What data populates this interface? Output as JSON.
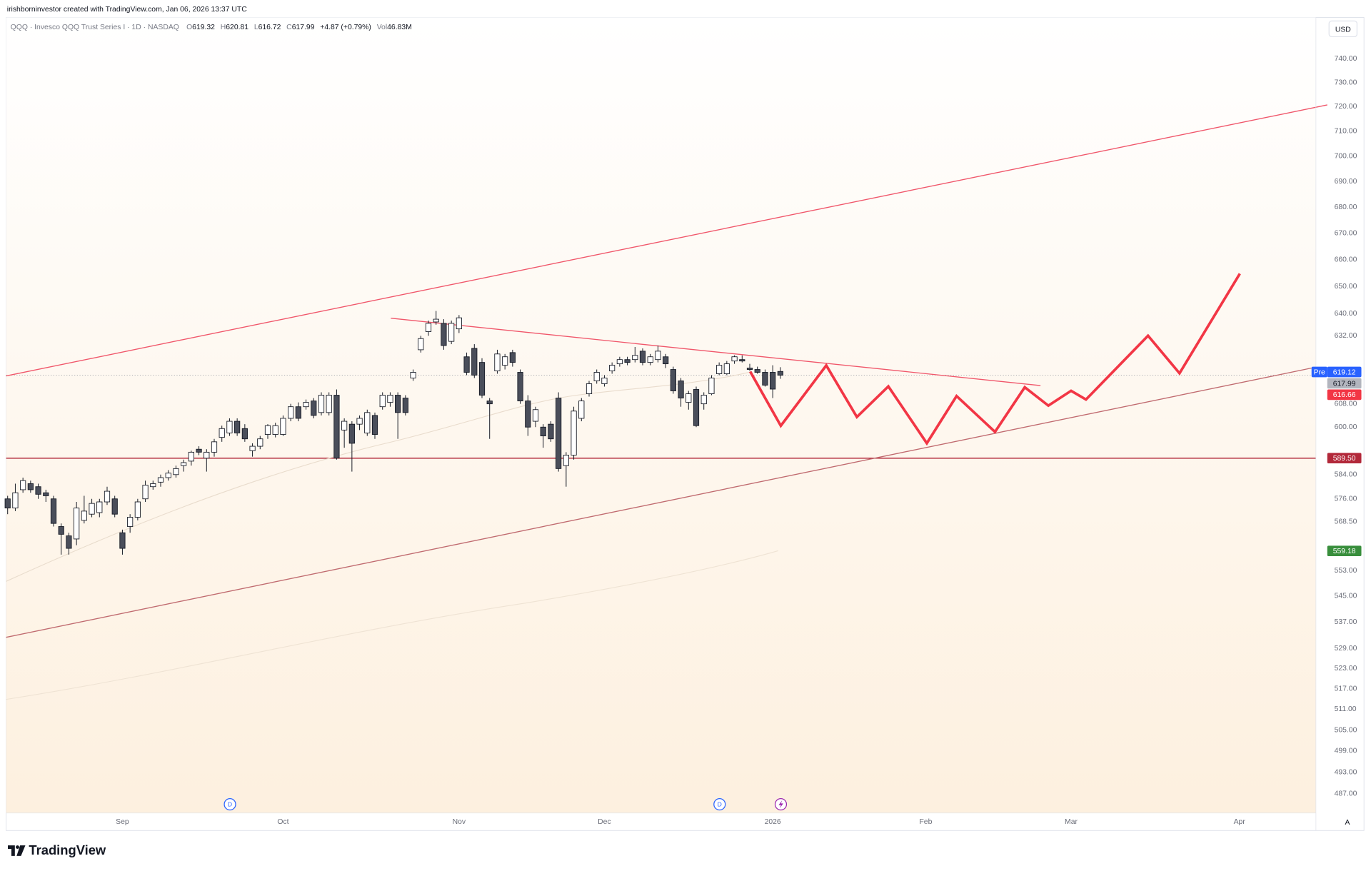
{
  "credit": "irishborninvestor created with TradingView.com, Jan 06, 2026 13:37 UTC",
  "header": {
    "symbol": "QQQ · Invesco QQQ Trust Series I · 1D · NASDAQ",
    "ohlc_labels": [
      "O",
      "H",
      "L",
      "C"
    ],
    "change": "+4.87 (+0.79%)",
    "vol_label": "Vol",
    "volume": "46.83M"
  },
  "currency": "USD",
  "auto_label": "A",
  "event_markers": [
    "D",
    "D"
  ],
  "brand": "TradingView",
  "chart_data": {
    "type": "candlestick",
    "log_scale": true,
    "grid": false,
    "up_color": "#ffffff",
    "down_color": "#4a4e5a",
    "wick_color": "#131722",
    "ylim": [
      481.7,
      757.5
    ],
    "yticks": [
      {
        "value": 740,
        "label": "740.00"
      },
      {
        "value": 730,
        "label": "730.00"
      },
      {
        "value": 720,
        "label": "720.00"
      },
      {
        "value": 710,
        "label": "710.00"
      },
      {
        "value": 700,
        "label": "700.00"
      },
      {
        "value": 690,
        "label": "690.00"
      },
      {
        "value": 680,
        "label": "680.00"
      },
      {
        "value": 670,
        "label": "670.00"
      },
      {
        "value": 660,
        "label": "660.00"
      },
      {
        "value": 650,
        "label": "650.00"
      },
      {
        "value": 640,
        "label": "640.00"
      },
      {
        "value": 632,
        "label": "632.00"
      },
      {
        "value": 608,
        "label": "608.00"
      },
      {
        "value": 600,
        "label": "600.00"
      },
      {
        "value": 584,
        "label": "584.00"
      },
      {
        "value": 576,
        "label": "576.00"
      },
      {
        "value": 568.5,
        "label": "568.50"
      },
      {
        "value": 553,
        "label": "553.00"
      },
      {
        "value": 545,
        "label": "545.00"
      },
      {
        "value": 537,
        "label": "537.00"
      },
      {
        "value": 529,
        "label": "529.00"
      },
      {
        "value": 523,
        "label": "523.00"
      },
      {
        "value": 517,
        "label": "517.00"
      },
      {
        "value": 511,
        "label": "511.00"
      },
      {
        "value": 505,
        "label": "505.00"
      },
      {
        "value": 499,
        "label": "499.00"
      },
      {
        "value": 493,
        "label": "493.00"
      },
      {
        "value": 487,
        "label": "487.00"
      }
    ],
    "price_tags": [
      {
        "name": "Pre",
        "value": 619.12,
        "color": "#2962ff"
      },
      {
        "value": 616.66,
        "color": "#f23645"
      },
      {
        "value": 589.5,
        "label": "589.50",
        "color": "#b2283a",
        "line": true
      },
      {
        "value": 559.18,
        "color": "#388e3c"
      }
    ],
    "last_color": "#b2b5be",
    "categories": [
      null,
      null,
      null,
      null,
      null,
      null,
      null,
      null,
      null,
      null,
      null,
      null,
      null,
      null,
      null,
      "Sep",
      null,
      null,
      null,
      null,
      null,
      null,
      null,
      null,
      null,
      null,
      null,
      null,
      null,
      null,
      null,
      null,
      null,
      null,
      null,
      null,
      "Oct",
      null,
      null,
      null,
      null,
      null,
      null,
      null,
      null,
      null,
      null,
      null,
      null,
      null,
      null,
      null,
      null,
      null,
      null,
      null,
      null,
      null,
      null,
      "Nov",
      null,
      null,
      null,
      null,
      null,
      null,
      null,
      null,
      null,
      null,
      null,
      null,
      null,
      null,
      null,
      null,
      null,
      null,
      "Dec",
      null,
      null,
      null,
      null,
      null,
      null,
      null,
      null,
      null,
      null,
      null,
      null,
      null,
      null,
      null,
      null,
      null,
      null,
      null,
      null,
      null,
      "2026",
      null,
      null,
      null,
      null,
      null,
      null,
      null,
      null,
      null,
      null,
      null,
      null,
      null,
      null,
      null,
      null,
      null,
      null,
      null,
      "Feb",
      null,
      null,
      null,
      null,
      null,
      null,
      null,
      null,
      null,
      null,
      null,
      null,
      null,
      null,
      null,
      null,
      null,
      null,
      "Mar",
      null,
      null,
      null,
      null,
      null,
      null,
      null,
      null,
      null,
      null,
      null,
      null,
      null,
      null,
      null,
      null,
      null,
      null,
      null,
      null,
      null,
      "Apr",
      null,
      null,
      null,
      null,
      null,
      null,
      null,
      null
    ],
    "open": [
      576,
      573,
      579,
      581,
      580,
      578,
      576,
      567,
      564,
      563,
      569,
      571,
      571.5,
      575,
      576,
      565,
      567,
      570,
      576,
      580,
      581.5,
      583,
      584,
      587,
      588.5,
      592.5,
      589.5,
      591.5,
      596.5,
      598,
      602,
      599.5,
      592,
      593.5,
      597.5,
      597.5,
      597.5,
      603,
      607,
      607,
      609,
      605,
      605,
      611,
      599,
      601,
      601,
      598,
      604,
      607,
      608.5,
      611,
      610,
      617,
      627,
      633.5,
      637,
      636.5,
      630,
      634.5,
      624.5,
      627.5,
      622.5,
      609,
      619.5,
      621.5,
      626,
      619,
      609,
      602,
      600,
      601,
      610,
      587,
      590.5,
      603,
      611.5,
      616,
      615,
      619.5,
      622,
      623.5,
      623.5,
      626.5,
      622.5,
      623.5,
      624.5,
      620,
      616,
      608.5,
      613,
      608,
      611.5,
      618.5,
      618.5,
      623,
      623.5,
      620.5,
      620,
      619,
      619,
      619.32,
      null,
      null,
      null,
      null,
      null,
      null,
      null,
      null,
      null,
      null,
      null,
      null,
      null,
      null,
      null,
      null,
      null,
      null,
      null,
      null,
      null,
      null,
      null,
      null,
      null,
      null,
      null,
      null,
      null,
      null,
      null,
      null,
      null,
      null,
      null,
      null,
      null,
      null,
      null,
      null,
      null,
      null,
      null,
      null,
      null,
      null,
      null,
      null,
      null,
      null,
      null,
      null,
      null,
      null,
      null,
      null,
      null,
      null,
      null,
      null,
      null,
      null,
      null,
      null,
      null,
      null,
      null,
      null
    ],
    "high": [
      577,
      581,
      583,
      582,
      581,
      579,
      577,
      568,
      565,
      575,
      577,
      576,
      576,
      580,
      577,
      566,
      571,
      576,
      582,
      582,
      584,
      585.5,
      587,
      589,
      592,
      593.5,
      592.5,
      596,
      600.5,
      603,
      603,
      601,
      594.5,
      597,
      601,
      601.5,
      604,
      608,
      608.5,
      609.5,
      610,
      612,
      612,
      613,
      603,
      602,
      604,
      606,
      605,
      612,
      612,
      612,
      611,
      620,
      632,
      637.5,
      641,
      638,
      637.5,
      639.5,
      626,
      629,
      624,
      610,
      627,
      625.5,
      627,
      620,
      611,
      607,
      601,
      602,
      612,
      591.5,
      607,
      610,
      616,
      620,
      618,
      622.5,
      624.5,
      624.5,
      628,
      627.5,
      625.5,
      628.5,
      625.5,
      621,
      617,
      612.5,
      614,
      612,
      618,
      622.5,
      623,
      625,
      625,
      622,
      621,
      620,
      621.5,
      620.81,
      null,
      null,
      null,
      null,
      null,
      null,
      null,
      null,
      null,
      null,
      null,
      null,
      null,
      null,
      null,
      null,
      null,
      null,
      null,
      null,
      null,
      null,
      null,
      null,
      null,
      null,
      null,
      null,
      null,
      null,
      null,
      null,
      null,
      null,
      null,
      null,
      null,
      null,
      null,
      null,
      null,
      null,
      null,
      null,
      null,
      null,
      null,
      null,
      null,
      null,
      null,
      null,
      null,
      null,
      null,
      null,
      null,
      null,
      null,
      null,
      null,
      null,
      null,
      null,
      null,
      null,
      null,
      null
    ],
    "low": [
      571,
      572,
      578,
      578,
      576,
      575,
      567,
      558,
      558,
      561,
      568,
      570,
      570,
      574,
      570,
      558,
      565,
      569,
      575,
      579,
      580,
      582,
      583,
      585,
      587,
      590.5,
      585,
      590,
      595,
      597,
      597,
      595,
      590,
      592.5,
      596,
      596.5,
      597,
      602,
      602,
      606,
      603,
      604,
      604,
      589,
      593,
      585,
      599,
      597,
      596,
      606,
      607,
      596,
      604,
      616,
      626,
      632,
      636,
      627,
      629,
      633,
      618,
      617,
      610,
      596,
      618.5,
      620,
      621,
      608,
      597,
      600,
      593,
      595,
      585,
      580,
      589,
      602,
      610.5,
      615,
      614,
      618.5,
      621,
      621.5,
      622.5,
      621.5,
      621.5,
      622.5,
      620.5,
      611.5,
      607,
      606,
      600,
      606,
      611,
      618,
      618,
      622,
      622.5,
      619.5,
      618.5,
      614,
      610,
      616.72,
      null,
      null,
      null,
      null,
      null,
      null,
      null,
      null,
      null,
      null,
      null,
      null,
      null,
      null,
      null,
      null,
      null,
      null,
      null,
      null,
      null,
      null,
      null,
      null,
      null,
      null,
      null,
      null,
      null,
      null,
      null,
      null,
      null,
      null,
      null,
      null,
      null,
      null,
      null,
      null,
      null,
      null,
      null,
      null,
      null,
      null,
      null,
      null,
      null,
      null,
      null,
      null,
      null,
      null,
      null,
      null,
      null,
      null,
      null,
      null,
      null,
      null,
      null,
      null,
      null,
      null,
      null,
      null
    ],
    "close": [
      573,
      578,
      582,
      579,
      577.5,
      577,
      568,
      564.5,
      560,
      573,
      572,
      574.5,
      575,
      578.5,
      571,
      560,
      570,
      575,
      580.5,
      581,
      583,
      584.5,
      586,
      588,
      591.5,
      591.5,
      591.5,
      595,
      599.5,
      602,
      598,
      596,
      593.5,
      596,
      600.5,
      600.5,
      603,
      607,
      603,
      608.5,
      604,
      611,
      611,
      589.5,
      602,
      594.5,
      603,
      605,
      597.5,
      611,
      611,
      605,
      605,
      619,
      631,
      636.5,
      638,
      628.5,
      636.5,
      638.5,
      619,
      618,
      611,
      608,
      625.5,
      624.5,
      622.5,
      609,
      600,
      606,
      597,
      596,
      586,
      590.5,
      605.5,
      609,
      615,
      619,
      617,
      621.5,
      623.5,
      622.5,
      625,
      622.5,
      624.5,
      626.5,
      622,
      612.5,
      610,
      611.5,
      600.5,
      611,
      617,
      621.5,
      622,
      624.5,
      623,
      620,
      619,
      614.5,
      613.12,
      617.99,
      null,
      null,
      null,
      null,
      null,
      null,
      null,
      null,
      null,
      null,
      null,
      null,
      null,
      null,
      null,
      null,
      null,
      null,
      null,
      null,
      null,
      null,
      null,
      null,
      null,
      null,
      null,
      null,
      null,
      null,
      null,
      null,
      null,
      null,
      null,
      null,
      null,
      null,
      null,
      null,
      null,
      null,
      null,
      null,
      null,
      null,
      null,
      null,
      null,
      null,
      null,
      null,
      null,
      null,
      null,
      null,
      null,
      null,
      null,
      null,
      null,
      null,
      null,
      null,
      null,
      null,
      null,
      null
    ]
  }
}
